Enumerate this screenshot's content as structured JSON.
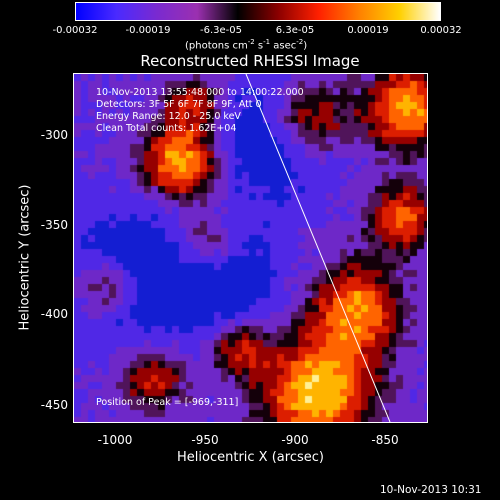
{
  "colorbar": {
    "ticks": [
      "-0.00032",
      "-0.00019",
      "-6.3e-05",
      "6.3e-05",
      "0.00019",
      "0.00032"
    ],
    "units": "(photons cm",
    "units_exp1": "-2",
    "units_mid": " s",
    "units_exp2": "-1",
    "units_mid2": " asec",
    "units_exp3": "-2",
    "units_end": ")"
  },
  "title": "Reconstructed RHESSI Image",
  "info": {
    "time": "10-Nov-2013 13:55:48.000 to 14:00:22.000",
    "detectors": "Detectors: 3F 5F 6F 7F 8F 9F, Att 0",
    "energy": "Energy Range: 12.0 - 25.0 keV",
    "clean": "Clean    Total counts: 1.62E+04",
    "peak": "Position of Peak = [-969,-311]"
  },
  "axes": {
    "xlabel": "Heliocentric X (arcsec)",
    "ylabel": "Heliocentric Y (arcsec)",
    "xticks": [
      "-1000",
      "-950",
      "-900",
      "-850"
    ],
    "yticks": [
      "-300",
      "-350",
      "-400",
      "-450"
    ]
  },
  "timestamp": "10-Nov-2013 10:31",
  "colors": {
    "bar_gradient": [
      "#0000ff",
      "#4a2aff",
      "#7a2ad0",
      "#9b30b0",
      "#000000",
      "#8b0000",
      "#ff2000",
      "#ff8000",
      "#ffd000",
      "#ffffff"
    ]
  }
}
